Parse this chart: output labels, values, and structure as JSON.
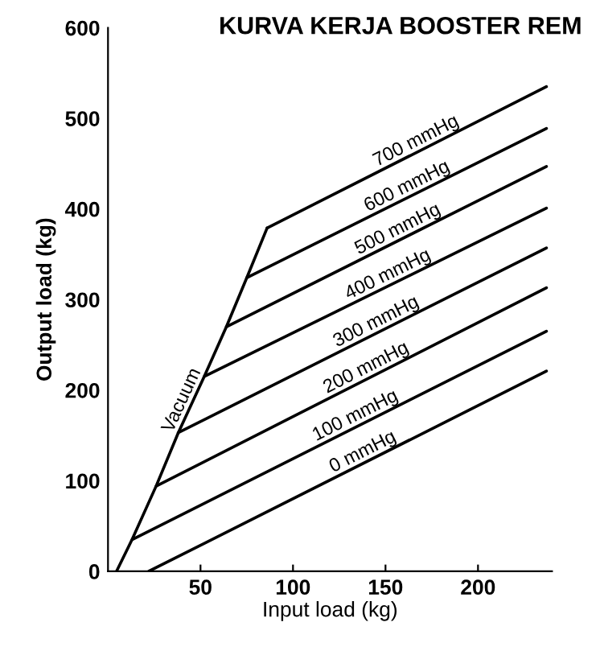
{
  "chart_data": {
    "type": "line",
    "title": "KURVA KERJA BOOSTER REM",
    "xlabel": "Input load (kg)",
    "ylabel": "Output load (kg)",
    "xlim": [
      0,
      240
    ],
    "ylim": [
      0,
      600
    ],
    "xticks": [
      50,
      100,
      150,
      200
    ],
    "yticks": [
      0,
      100,
      200,
      300,
      400,
      500,
      600
    ],
    "grid": false,
    "marker": "none",
    "line_style": "solid",
    "series": [
      {
        "name": "Vacuum",
        "color": "#000000",
        "x": [
          4.6,
          13,
          26,
          38,
          52,
          64,
          75,
          86
        ],
        "values": [
          0,
          35,
          94,
          153,
          215,
          270,
          324,
          379
        ]
      },
      {
        "name": "0 mmHg",
        "color": "#000000",
        "x": [
          22,
          237
        ],
        "values": [
          0,
          221
        ]
      },
      {
        "name": "100 mmHg",
        "color": "#000000",
        "x": [
          13,
          237
        ],
        "values": [
          35,
          265
        ]
      },
      {
        "name": "200 mmHg",
        "color": "#000000",
        "x": [
          26,
          237
        ],
        "values": [
          94,
          313
        ]
      },
      {
        "name": "300 mmHg",
        "color": "#000000",
        "x": [
          38,
          237
        ],
        "values": [
          153,
          357
        ]
      },
      {
        "name": "400 mmHg",
        "color": "#000000",
        "x": [
          52,
          237
        ],
        "values": [
          215,
          401
        ]
      },
      {
        "name": "500 mmHg",
        "color": "#000000",
        "x": [
          64,
          237
        ],
        "values": [
          270,
          447
        ]
      },
      {
        "name": "600 mmHg",
        "color": "#000000",
        "x": [
          75,
          237
        ],
        "values": [
          324,
          489
        ]
      },
      {
        "name": "700 mmHg",
        "color": "#000000",
        "x": [
          86,
          237
        ],
        "values": [
          379,
          535
        ]
      }
    ]
  }
}
